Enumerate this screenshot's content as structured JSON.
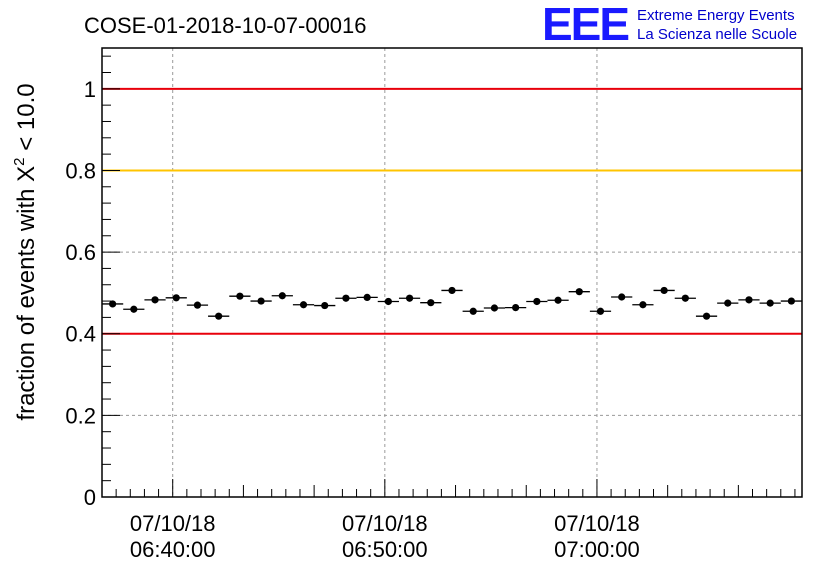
{
  "chart_data": {
    "type": "scatter",
    "title": "COSE-01-2018-10-07-00016",
    "ylabel": "fraction of events with χ² < 10.0",
    "ylabel_parts": {
      "prefix": "fraction of events with X",
      "sup": "2",
      "suffix": " < 10.0"
    },
    "logo": {
      "mark": "EEE",
      "line1": "Extreme Energy Events",
      "line2": "La Scienza nelle Scuole"
    },
    "ylim": [
      0,
      1.1
    ],
    "xlim_minutes": [
      0,
      49.5
    ],
    "yticks": [
      0,
      0.2,
      0.4,
      0.6,
      0.8,
      1
    ],
    "ytick_labels": [
      "0",
      "0.2",
      "0.4",
      "0.6",
      "0.8",
      "1"
    ],
    "xticks": [
      {
        "minute": 5,
        "date": "07/10/18",
        "time": "06:40:00"
      },
      {
        "minute": 20,
        "date": "07/10/18",
        "time": "06:50:00"
      },
      {
        "minute": 35,
        "date": "07/10/18",
        "time": "07:00:00"
      }
    ],
    "reference_lines": [
      {
        "y": 1.0,
        "color": "#e8000b"
      },
      {
        "y": 0.8,
        "color": "#ffc400"
      },
      {
        "y": 0.4,
        "color": "#e8000b"
      }
    ],
    "grid": true,
    "bin_width_minutes": 1.5,
    "x_minutes": [
      0.75,
      2.25,
      3.75,
      5.25,
      6.75,
      8.25,
      9.75,
      11.25,
      12.75,
      14.25,
      15.75,
      17.25,
      18.75,
      20.25,
      21.75,
      23.25,
      24.75,
      26.25,
      27.75,
      29.25,
      30.75,
      32.25,
      33.75,
      35.25,
      36.75,
      38.25,
      39.75,
      41.25,
      42.75,
      44.25,
      45.75,
      47.25,
      48.75
    ],
    "values": [
      0.473,
      0.46,
      0.483,
      0.488,
      0.47,
      0.443,
      0.492,
      0.48,
      0.493,
      0.471,
      0.469,
      0.487,
      0.489,
      0.479,
      0.487,
      0.476,
      0.506,
      0.455,
      0.463,
      0.464,
      0.479,
      0.482,
      0.503,
      0.455,
      0.49,
      0.471,
      0.506,
      0.487,
      0.443,
      0.475,
      0.483,
      0.475,
      0.48
    ],
    "errors": [
      0.008,
      0.008,
      0.008,
      0.008,
      0.008,
      0.008,
      0.008,
      0.008,
      0.008,
      0.008,
      0.008,
      0.008,
      0.008,
      0.008,
      0.008,
      0.008,
      0.008,
      0.008,
      0.008,
      0.008,
      0.008,
      0.008,
      0.008,
      0.008,
      0.008,
      0.008,
      0.008,
      0.008,
      0.008,
      0.008,
      0.008,
      0.008,
      0.008
    ],
    "colors": {
      "marker": "#000000",
      "grid": "#9a9a9a",
      "axis": "#000000"
    }
  }
}
